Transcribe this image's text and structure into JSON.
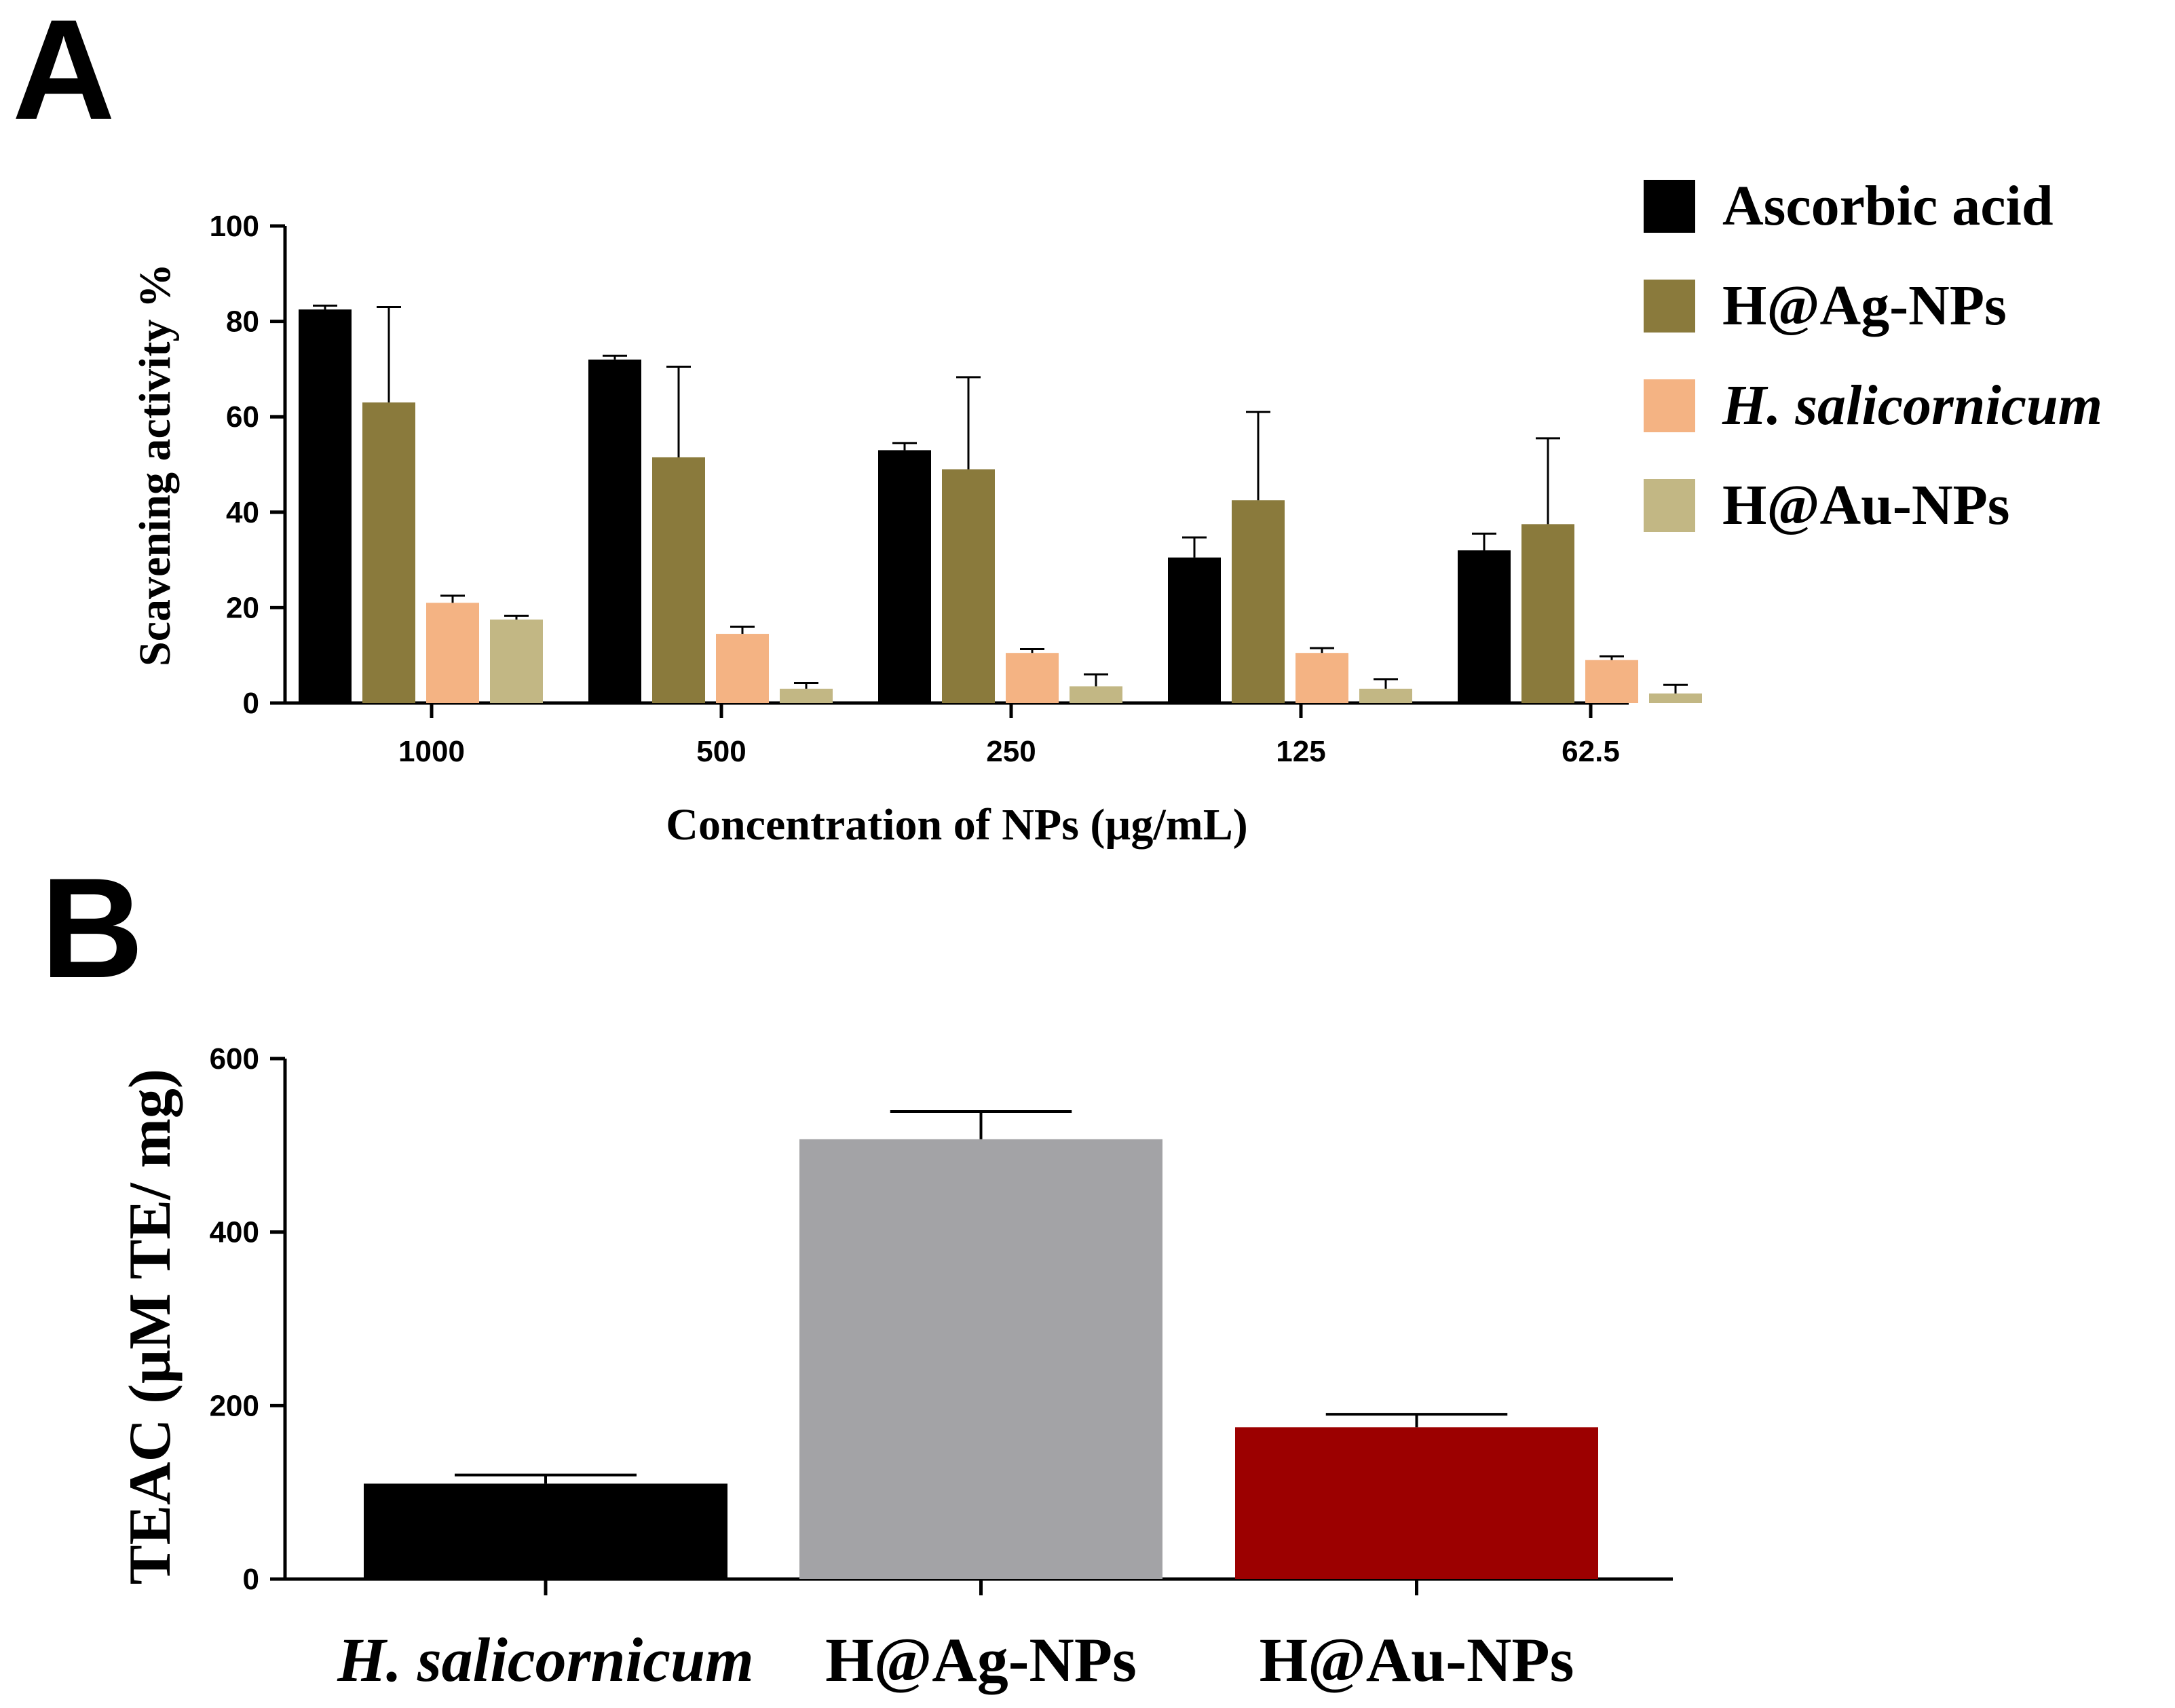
{
  "chart_data": [
    {
      "panel": "A",
      "type": "bar",
      "title": "",
      "xlabel": "Concentration of NPs (µg/mL)",
      "ylabel": "Scavening activity %",
      "ylim": [
        0,
        100
      ],
      "yticks": [
        "0",
        "20",
        "40",
        "60",
        "80",
        "100"
      ],
      "categories": [
        "1000",
        "500",
        "250",
        "125",
        "62.5"
      ],
      "legend_position": "right",
      "series": [
        {
          "name": "Ascorbic acid",
          "italic": false,
          "color": "#000000",
          "values": [
            82.5,
            72,
            53,
            30.5,
            32
          ],
          "errors": [
            0.8,
            0.8,
            1.5,
            4.2,
            3.5
          ]
        },
        {
          "name": "H@Ag-NPs",
          "italic": false,
          "color": "#8a7a3c",
          "values": [
            63,
            51.5,
            49,
            42.5,
            37.5
          ],
          "errors": [
            20,
            19,
            19.3,
            18.5,
            18
          ]
        },
        {
          "name": "H. salicornicum",
          "italic": true,
          "color": "#f4b383",
          "values": [
            21,
            14.5,
            10.5,
            10.5,
            9
          ],
          "errors": [
            1.5,
            1.5,
            0.8,
            1,
            0.8
          ]
        },
        {
          "name": "H@Au-NPs",
          "italic": false,
          "color": "#c2b784",
          "values": [
            17.5,
            3,
            3.5,
            3,
            2
          ],
          "errors": [
            0.8,
            1.2,
            2.5,
            2,
            1.8
          ]
        }
      ]
    },
    {
      "panel": "B",
      "type": "bar",
      "title": "",
      "xlabel": "",
      "ylabel": "TEAC (µM TE/ mg)",
      "ylim": [
        0,
        600
      ],
      "yticks": [
        "0",
        "200",
        "400",
        "600"
      ],
      "categories": [
        {
          "label": "H. salicornicum",
          "italic": true
        },
        {
          "label": "H@Ag-NPs",
          "italic": false
        },
        {
          "label": "H@Au-NPs",
          "italic": false
        }
      ],
      "values": [
        110,
        507,
        175
      ],
      "errors": [
        10,
        32,
        15
      ],
      "colors": [
        "#000000",
        "#a3a3a6",
        "#9c0000"
      ]
    }
  ],
  "panel_labels": {
    "a": "A",
    "b": "B"
  }
}
